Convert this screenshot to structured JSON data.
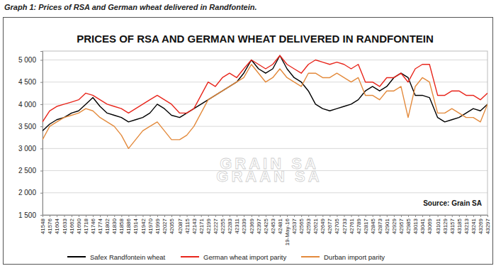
{
  "chart_data": {
    "type": "line",
    "caption": "Graph 1: Prices of RSA and German wheat delivered in Randfontein.",
    "title": "PRICES OF RSA AND GERMAN WHEAT DELIVERED IN RANDFONTEIN",
    "annotations": [
      "Source: Grain SA",
      "GRAIN SA",
      "GRAAN SA"
    ],
    "x": [
      41548,
      41576,
      41604,
      41633,
      41662,
      41690,
      41718,
      41746,
      41774,
      41802,
      41830,
      41858,
      41886,
      41914,
      41942,
      41970,
      41999,
      42027,
      42055,
      42087,
      42115,
      42143,
      42171,
      42199,
      42227,
      42255,
      42283,
      42311,
      42339,
      42369,
      42397,
      42425,
      42453,
      42481,
      42509,
      42537,
      42565,
      42593,
      42621,
      42649,
      42677,
      42705,
      42733,
      42761,
      42789,
      42817,
      42845,
      42873,
      42901,
      42929,
      42957,
      42985,
      43013,
      43041,
      43069,
      43101,
      43129,
      43157,
      43185,
      43213,
      43241,
      43269,
      43297
    ],
    "series": [
      {
        "name": "Safex Randfontein wheat",
        "color": "#000000",
        "values": [
          3400,
          3550,
          3650,
          3700,
          3800,
          3850,
          4000,
          4150,
          3950,
          3800,
          3750,
          3700,
          3600,
          3650,
          3700,
          3800,
          4000,
          3900,
          3750,
          3700,
          3800,
          3900,
          4000,
          4100,
          4200,
          4300,
          4400,
          4500,
          4700,
          5000,
          4800,
          4700,
          4800,
          5100,
          4800,
          4600,
          4500,
          4300,
          4000,
          3900,
          3850,
          3900,
          3950,
          4000,
          4100,
          4300,
          4400,
          4300,
          4400,
          4600,
          4700,
          4600,
          4200,
          4200,
          4150,
          3700,
          3600,
          3650,
          3700,
          3800,
          3900,
          3850,
          4000
        ]
      },
      {
        "name": "German wheat import parity",
        "color": "#e8261c",
        "values": [
          3600,
          3850,
          3950,
          4000,
          4050,
          4100,
          4250,
          4200,
          4100,
          4000,
          3950,
          3900,
          3800,
          3900,
          4000,
          4100,
          4200,
          4100,
          4000,
          3800,
          3800,
          3900,
          4200,
          4500,
          4400,
          4600,
          4700,
          4600,
          4800,
          5000,
          4900,
          4800,
          4900,
          5100,
          4900,
          4800,
          4700,
          4900,
          5000,
          4950,
          4900,
          4950,
          4900,
          4800,
          4900,
          4500,
          4500,
          4400,
          4600,
          4600,
          4700,
          4500,
          4800,
          4900,
          4900,
          4200,
          4200,
          4300,
          4300,
          4200,
          4200,
          4100,
          4250
        ]
      },
      {
        "name": "Durban import parity",
        "color": "#e38a3c",
        "values": [
          3200,
          3500,
          3600,
          3700,
          3750,
          3800,
          3900,
          3850,
          3700,
          3600,
          3500,
          3300,
          3000,
          3200,
          3400,
          3500,
          3600,
          3400,
          3200,
          3200,
          3300,
          3500,
          3800,
          4100,
          4200,
          4300,
          4400,
          4500,
          4600,
          4900,
          4700,
          4500,
          4600,
          4800,
          4600,
          4500,
          4400,
          4700,
          4700,
          4600,
          4600,
          4700,
          4600,
          4500,
          4600,
          4200,
          4200,
          4100,
          4300,
          4300,
          4400,
          3700,
          4400,
          4600,
          4500,
          3800,
          3800,
          3900,
          3800,
          3700,
          3700,
          3600,
          4000
        ]
      }
    ],
    "xlim": [
      41548,
      43297
    ],
    "xticks": [
      41548,
      41576,
      41604,
      41633,
      41662,
      41690,
      41718,
      41746,
      41774,
      41802,
      41830,
      41858,
      41886,
      41914,
      41942,
      41970,
      41999,
      42027,
      42055,
      42087,
      42115,
      42143,
      42171,
      42199,
      42227,
      42255,
      42283,
      42311,
      42339,
      42369,
      42397,
      42425,
      42453,
      42481,
      {
        "value": 42509,
        "label": "19-May-16"
      },
      42537,
      42565,
      42593,
      42621,
      42649,
      42677,
      42705,
      42733,
      42761,
      42789,
      42817,
      42845,
      42873,
      42901,
      42929,
      42957,
      42985,
      43013,
      43041,
      43069,
      43101,
      43129,
      43157,
      43185,
      43213,
      43241,
      43269,
      43297
    ],
    "ylim": [
      1500,
      5200
    ],
    "yticks": [
      {
        "value": 1500,
        "label": "1 500"
      },
      {
        "value": 2000,
        "label": "2 000"
      },
      {
        "value": 2500,
        "label": "2 500"
      },
      {
        "value": 3000,
        "label": "3 000"
      },
      {
        "value": 3500,
        "label": "3 500"
      },
      {
        "value": 4000,
        "label": "4 000"
      },
      {
        "value": 4500,
        "label": "4 500"
      },
      {
        "value": 5000,
        "label": "5 000"
      }
    ],
    "grid": true,
    "legend": "bottom"
  }
}
